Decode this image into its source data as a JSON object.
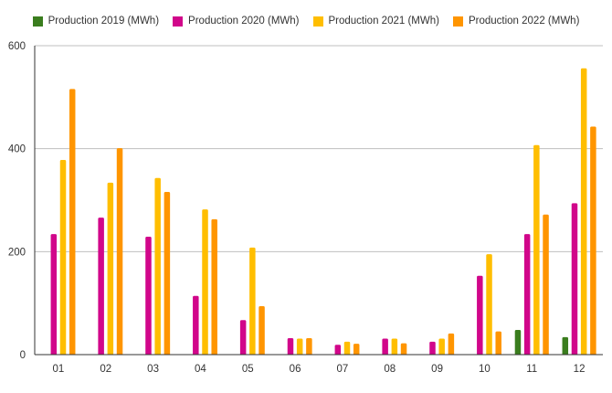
{
  "chart_data": {
    "type": "bar",
    "categories": [
      "01",
      "02",
      "03",
      "04",
      "05",
      "06",
      "07",
      "08",
      "09",
      "10",
      "11",
      "12"
    ],
    "series": [
      {
        "name": "Production 2019 (MWh)",
        "color": "#3a7d1e",
        "values": [
          0,
          0,
          0,
          0,
          0,
          0,
          0,
          0,
          0,
          0,
          48,
          34
        ]
      },
      {
        "name": "Production 2020 (MWh)",
        "color": "#d1068a",
        "values": [
          234,
          266,
          229,
          114,
          67,
          32,
          19,
          31,
          25,
          153,
          234,
          294
        ]
      },
      {
        "name": "Production 2021 (MWh)",
        "color": "#ffbe00",
        "values": [
          378,
          334,
          343,
          282,
          208,
          31,
          25,
          31,
          31,
          195,
          407,
          556
        ]
      },
      {
        "name": "Production 2022 (MWh)",
        "color": "#ff9500",
        "values": [
          516,
          401,
          316,
          263,
          94,
          32,
          21,
          22,
          41,
          45,
          272,
          443
        ]
      }
    ],
    "y_ticks": [
      "0",
      "200",
      "400",
      "600"
    ],
    "ylim": [
      0,
      600
    ],
    "grid": true,
    "legend_position": "top"
  }
}
